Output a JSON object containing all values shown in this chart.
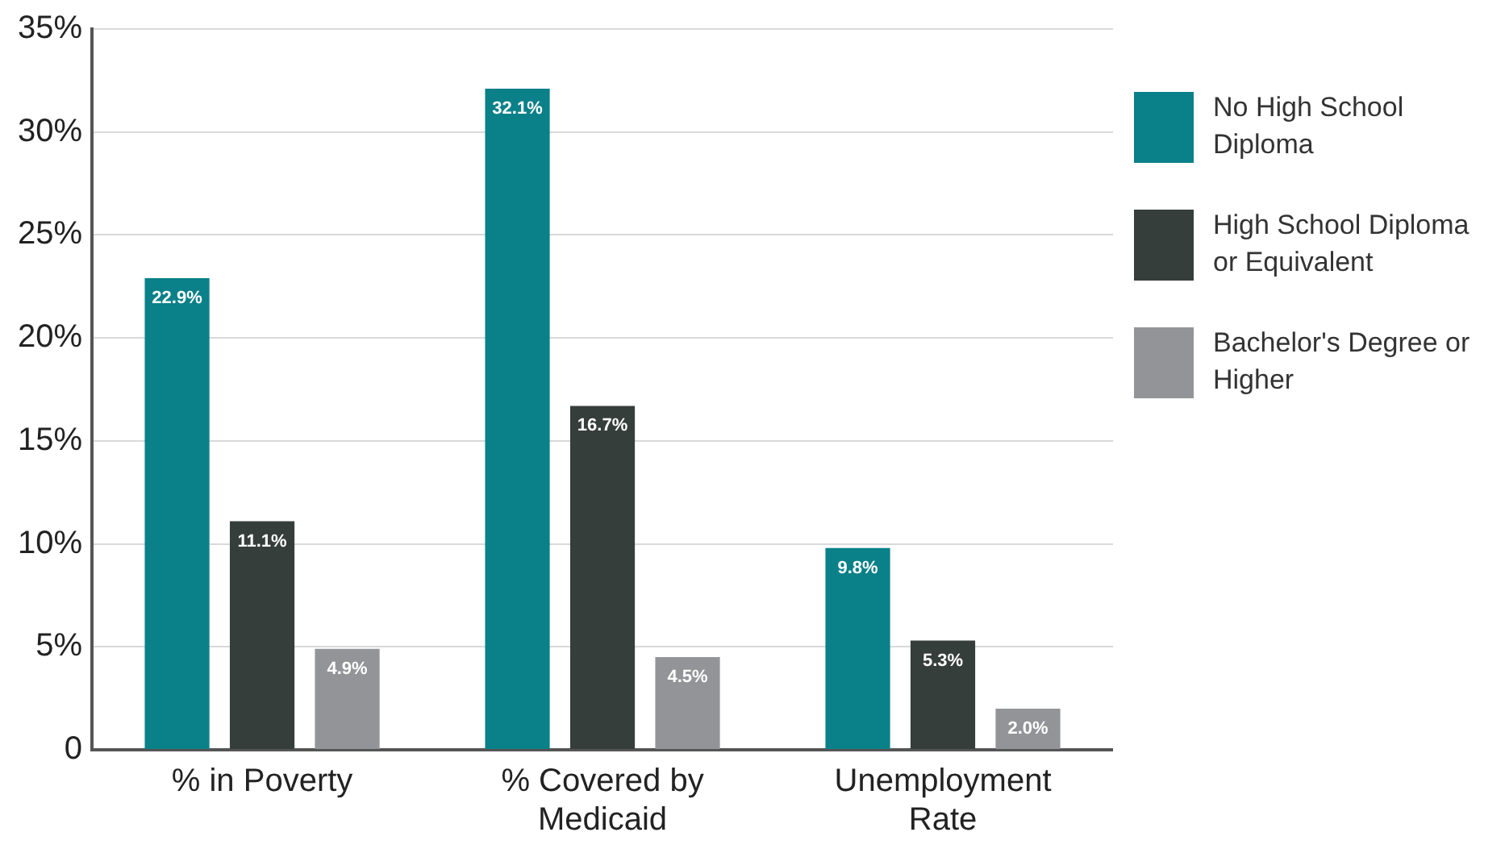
{
  "chart_data": {
    "type": "bar",
    "categories": [
      "% in Poverty",
      "% Covered by Medicaid",
      "Unemployment Rate"
    ],
    "series": [
      {
        "name": "No High School Diploma",
        "color": "#0a8089",
        "values": [
          22.9,
          32.1,
          9.8
        ],
        "value_labels": [
          "22.9%",
          "32.1%",
          "9.8%"
        ]
      },
      {
        "name": "High School Diploma or Equivalent",
        "color": "#363e3c",
        "values": [
          11.1,
          16.7,
          5.3
        ],
        "value_labels": [
          "11.1%",
          "16.7%",
          "5.3%"
        ]
      },
      {
        "name": "Bachelor's Degree or Higher",
        "color": "#939497",
        "values": [
          4.9,
          4.5,
          2.0
        ],
        "value_labels": [
          "4.9%",
          "4.5%",
          "2.0%"
        ]
      }
    ],
    "ylim": [
      0,
      35
    ],
    "yticks": [
      {
        "value": 0,
        "label": "0"
      },
      {
        "value": 5,
        "label": "5%"
      },
      {
        "value": 10,
        "label": "10%"
      },
      {
        "value": 15,
        "label": "15%"
      },
      {
        "value": 20,
        "label": "20%"
      },
      {
        "value": 25,
        "label": "25%"
      },
      {
        "value": 30,
        "label": "30%"
      },
      {
        "value": 35,
        "label": "35%"
      }
    ],
    "grid": "y",
    "legend": "right"
  }
}
